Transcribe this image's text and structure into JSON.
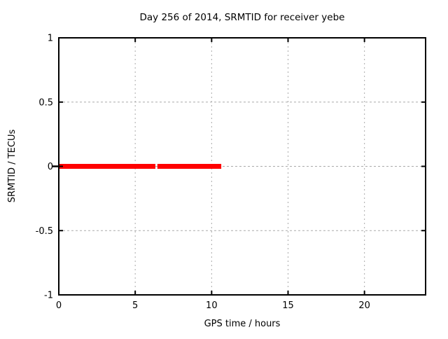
{
  "chart_data": {
    "type": "line",
    "title": "Day 256 of 2014, SRMTID for receiver yebe",
    "xlabel": "GPS time / hours",
    "ylabel": "SRMTID / TECUs",
    "xlim": [
      0,
      24
    ],
    "ylim": [
      -1,
      1
    ],
    "xticks": [
      0,
      5,
      10,
      15,
      20
    ],
    "yticks": [
      1,
      0.5,
      0,
      -0.5,
      -1
    ],
    "grid": true,
    "legend": "none",
    "series": [
      {
        "name": "SRMTID",
        "color": "#ff0000",
        "linewidth": 7,
        "y_value": 0,
        "segments": [
          {
            "x_start": 0.0,
            "x_end": 6.32
          },
          {
            "x_start": 6.45,
            "x_end": 10.63
          }
        ]
      }
    ],
    "colors": {
      "series_red": "#ff0000",
      "grid_gray": "#aaaaaa",
      "frame_black": "#000000",
      "background": "#ffffff"
    }
  }
}
